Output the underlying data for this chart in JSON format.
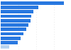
{
  "values": [
    269,
    161,
    138,
    130,
    125,
    118,
    108,
    96,
    85,
    72,
    35
  ],
  "bar_color": "#2878e0",
  "last_bar_color": "#b8d4f0",
  "background_color": "#ffffff",
  "grid_color": "#e8e8e8",
  "xlim": [
    0,
    295
  ],
  "bar_height": 0.75,
  "figsize": [
    1.0,
    0.71
  ]
}
